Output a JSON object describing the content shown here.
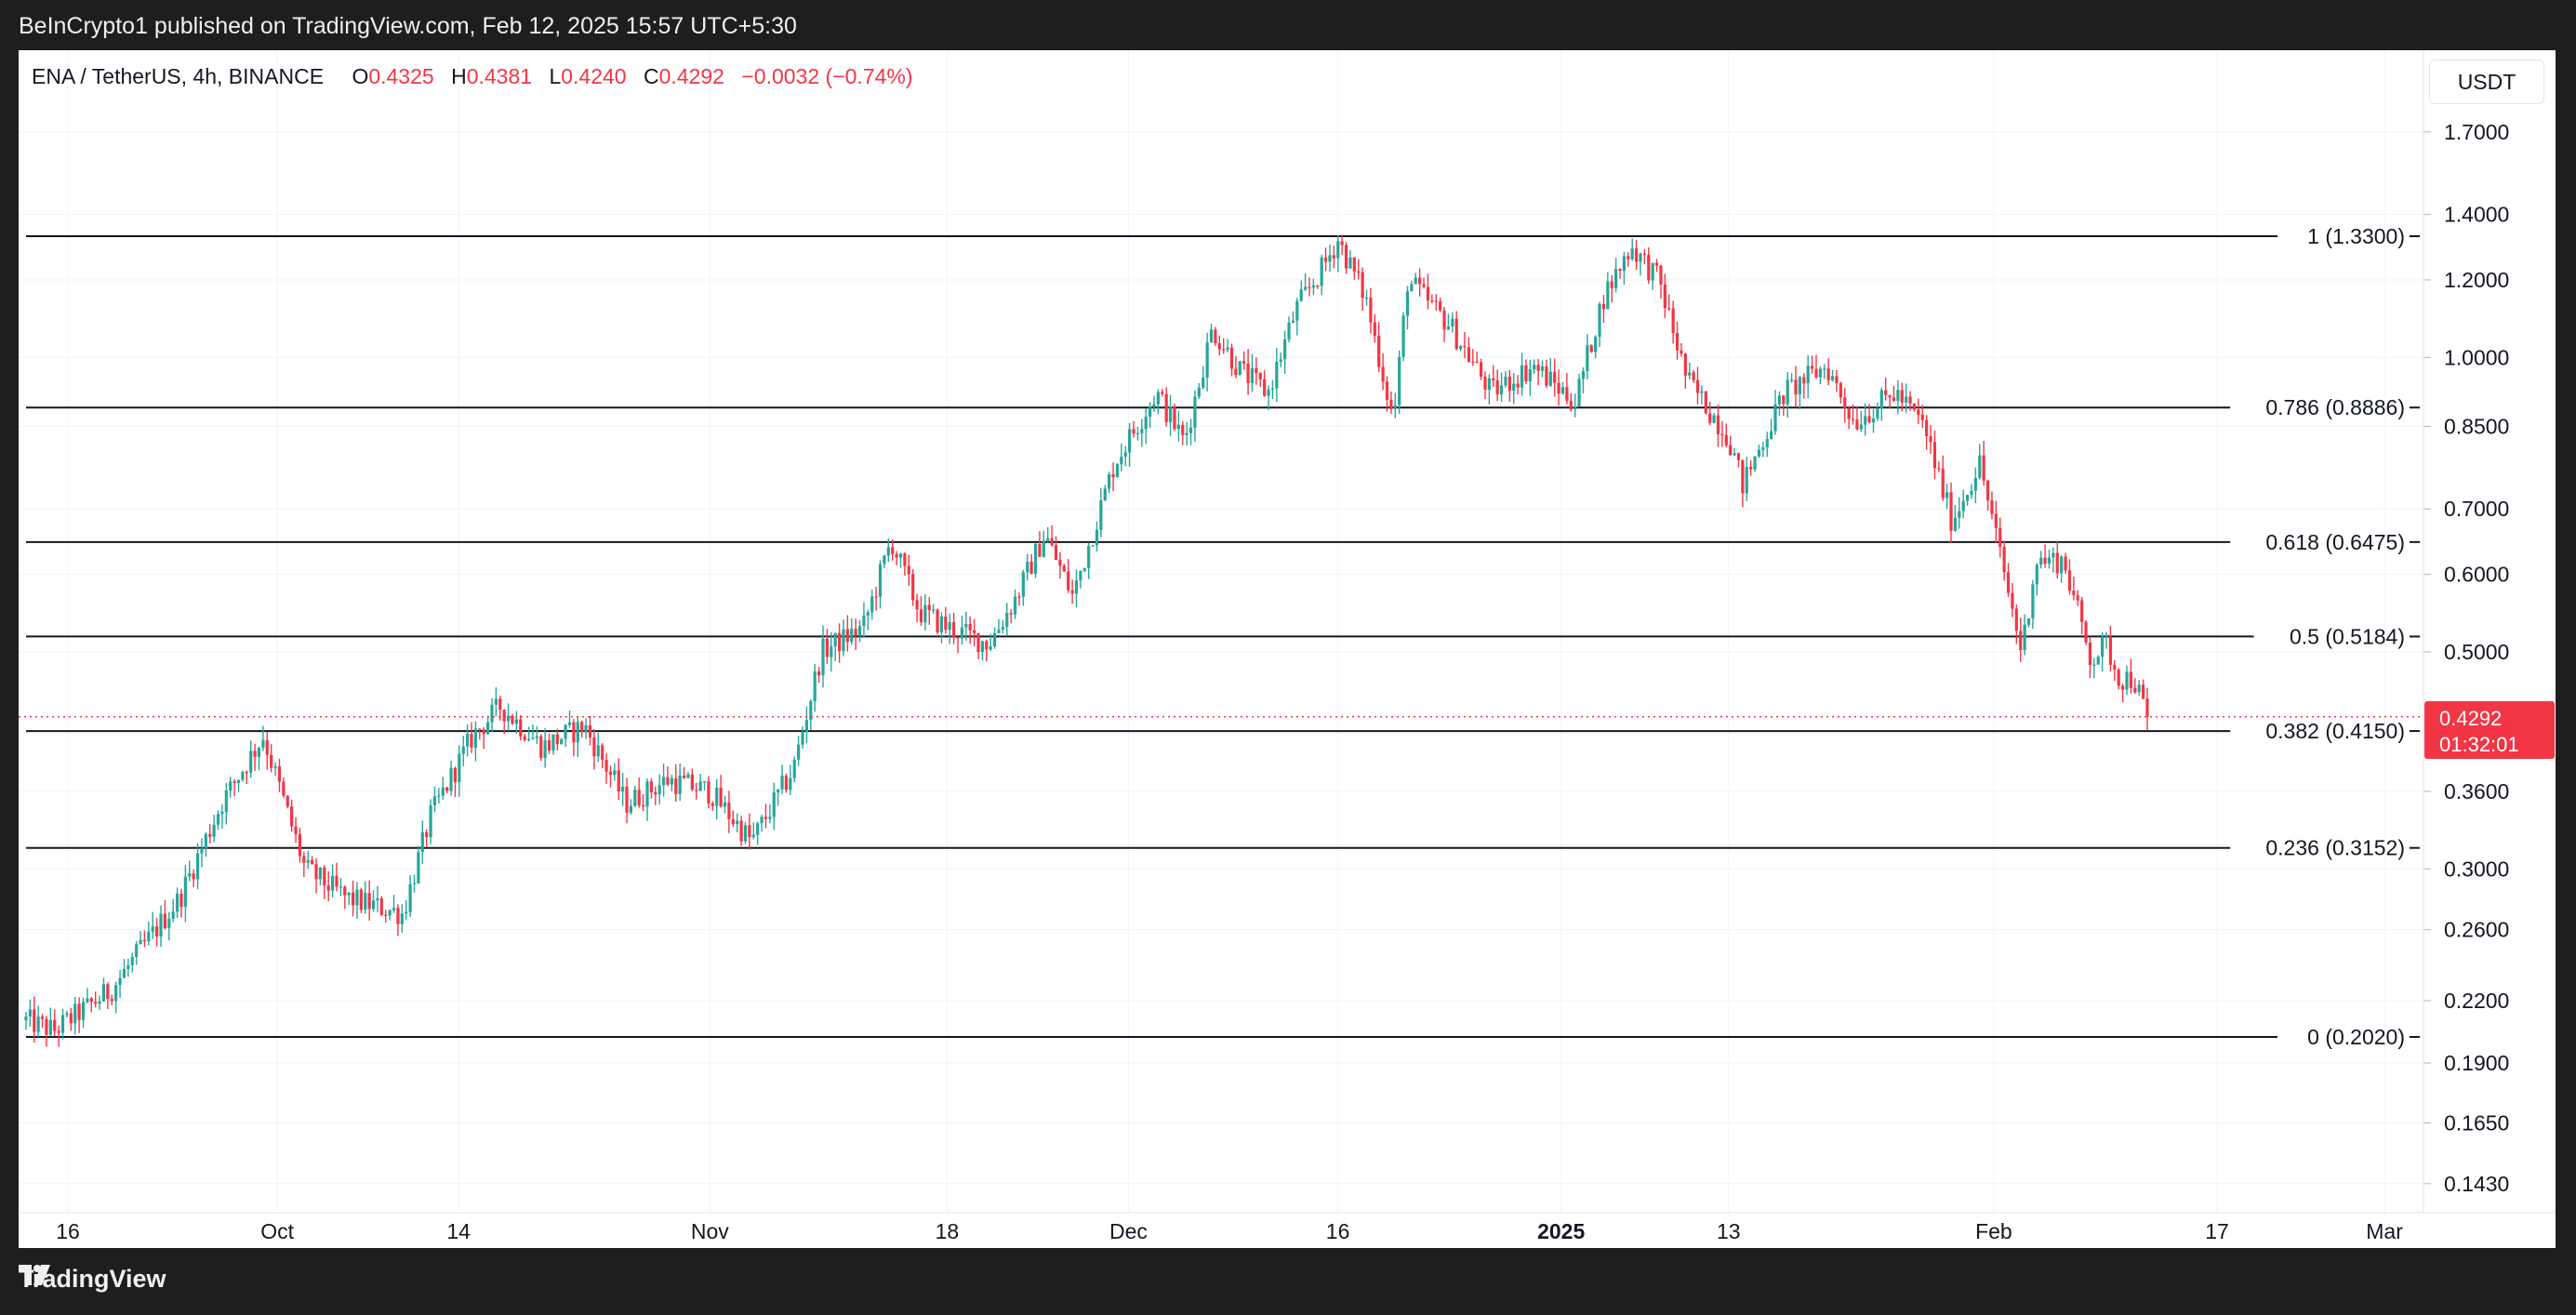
{
  "header": {
    "publisher_line": "BeInCrypto1 published on TradingView.com, Feb 12, 2025 15:57 UTC+5:30"
  },
  "legend": {
    "symbol": "ENA / TetherUS, 4h, BINANCE",
    "o_label": "O",
    "o_value": "0.4325",
    "h_label": "H",
    "h_value": "0.4381",
    "l_label": "L",
    "l_value": "0.4240",
    "c_label": "C",
    "c_value": "0.4292",
    "change": "−0.0032 (−0.74%)"
  },
  "currency": "USDT",
  "last_price": {
    "price": "0.4292",
    "countdown": "01:32:01"
  },
  "footer": {
    "brand": "TradingView"
  },
  "colors": {
    "up": "#26a69a",
    "down": "#f23645",
    "fib_line": "#131722",
    "grid": "#f0f3fa",
    "axis_text": "#131722"
  },
  "chart_data": {
    "type": "candlestick",
    "y_scale": "log",
    "y_ticks": [
      "1.7000",
      "1.4000",
      "1.2000",
      "1.0000",
      "0.8500",
      "0.7000",
      "0.6000",
      "0.5000",
      "0.3600",
      "0.3000",
      "0.2600",
      "0.2200",
      "0.1900",
      "0.1650",
      "0.1430"
    ],
    "x_ticks": [
      "16",
      "Oct",
      "14",
      "Nov",
      "18",
      "Dec",
      "16",
      "2025",
      "13",
      "Feb",
      "17",
      "Mar"
    ],
    "fib_levels": [
      {
        "label": "1 (1.3300)",
        "value": 1.33
      },
      {
        "label": "0.786 (0.8886)",
        "value": 0.8886
      },
      {
        "label": "0.618 (0.6475)",
        "value": 0.6475
      },
      {
        "label": "0.5 (0.5184)",
        "value": 0.5184
      },
      {
        "label": "0.382 (0.4150)",
        "value": 0.415
      },
      {
        "label": "0.236 (0.3152)",
        "value": 0.3152
      },
      {
        "label": "0 (0.2020)",
        "value": 0.202
      }
    ],
    "price_path": [
      {
        "date": "2024-09-13",
        "price": 0.21
      },
      {
        "date": "2024-09-15",
        "price": 0.205
      },
      {
        "date": "2024-09-19",
        "price": 0.225
      },
      {
        "date": "2024-09-24",
        "price": 0.28
      },
      {
        "date": "2024-09-27",
        "price": 0.35
      },
      {
        "date": "2024-09-30",
        "price": 0.41
      },
      {
        "date": "2024-10-03",
        "price": 0.3
      },
      {
        "date": "2024-10-06",
        "price": 0.28
      },
      {
        "date": "2024-10-10",
        "price": 0.27
      },
      {
        "date": "2024-10-12",
        "price": 0.34
      },
      {
        "date": "2024-10-15",
        "price": 0.41
      },
      {
        "date": "2024-10-17",
        "price": 0.44
      },
      {
        "date": "2024-10-20",
        "price": 0.4
      },
      {
        "date": "2024-10-23",
        "price": 0.42
      },
      {
        "date": "2024-10-26",
        "price": 0.35
      },
      {
        "date": "2024-10-29",
        "price": 0.37
      },
      {
        "date": "2024-11-01",
        "price": 0.36
      },
      {
        "date": "2024-11-04",
        "price": 0.32
      },
      {
        "date": "2024-11-07",
        "price": 0.38
      },
      {
        "date": "2024-11-09",
        "price": 0.5
      },
      {
        "date": "2024-11-12",
        "price": 0.53
      },
      {
        "date": "2024-11-14",
        "price": 0.65
      },
      {
        "date": "2024-11-16",
        "price": 0.55
      },
      {
        "date": "2024-11-18",
        "price": 0.53
      },
      {
        "date": "2024-11-21",
        "price": 0.51
      },
      {
        "date": "2024-11-23",
        "price": 0.57
      },
      {
        "date": "2024-11-25",
        "price": 0.66
      },
      {
        "date": "2024-11-27",
        "price": 0.57
      },
      {
        "date": "2024-11-30",
        "price": 0.78
      },
      {
        "date": "2024-12-03",
        "price": 0.92
      },
      {
        "date": "2024-12-05",
        "price": 0.82
      },
      {
        "date": "2024-12-07",
        "price": 1.07
      },
      {
        "date": "2024-12-09",
        "price": 0.97
      },
      {
        "date": "2024-12-11",
        "price": 0.92
      },
      {
        "date": "2024-12-13",
        "price": 1.12
      },
      {
        "date": "2024-12-15",
        "price": 1.24
      },
      {
        "date": "2024-12-16",
        "price": 1.32
      },
      {
        "date": "2024-12-18",
        "price": 1.15
      },
      {
        "date": "2024-12-20",
        "price": 0.86
      },
      {
        "date": "2024-12-21",
        "price": 1.2
      },
      {
        "date": "2024-12-24",
        "price": 1.08
      },
      {
        "date": "2024-12-27",
        "price": 0.92
      },
      {
        "date": "2024-12-30",
        "price": 0.98
      },
      {
        "date": "2025-01-02",
        "price": 0.9
      },
      {
        "date": "2025-01-04",
        "price": 1.15
      },
      {
        "date": "2025-01-06",
        "price": 1.3
      },
      {
        "date": "2025-01-08",
        "price": 1.2
      },
      {
        "date": "2025-01-10",
        "price": 0.95
      },
      {
        "date": "2025-01-13",
        "price": 0.83
      },
      {
        "date": "2025-01-14",
        "price": 0.74
      },
      {
        "date": "2025-01-17",
        "price": 0.92
      },
      {
        "date": "2025-01-20",
        "price": 0.98
      },
      {
        "date": "2025-01-22",
        "price": 0.86
      },
      {
        "date": "2025-01-25",
        "price": 0.92
      },
      {
        "date": "2025-01-27",
        "price": 0.85
      },
      {
        "date": "2025-01-29",
        "price": 0.68
      },
      {
        "date": "2025-01-31",
        "price": 0.78
      },
      {
        "date": "2025-02-03",
        "price": 0.5
      },
      {
        "date": "2025-02-04",
        "price": 0.62
      },
      {
        "date": "2025-02-06",
        "price": 0.62
      },
      {
        "date": "2025-02-08",
        "price": 0.49
      },
      {
        "date": "2025-02-09",
        "price": 0.51
      },
      {
        "date": "2025-02-10",
        "price": 0.47
      },
      {
        "date": "2025-02-11",
        "price": 0.47
      },
      {
        "date": "2025-02-12",
        "price": 0.4292
      }
    ]
  }
}
